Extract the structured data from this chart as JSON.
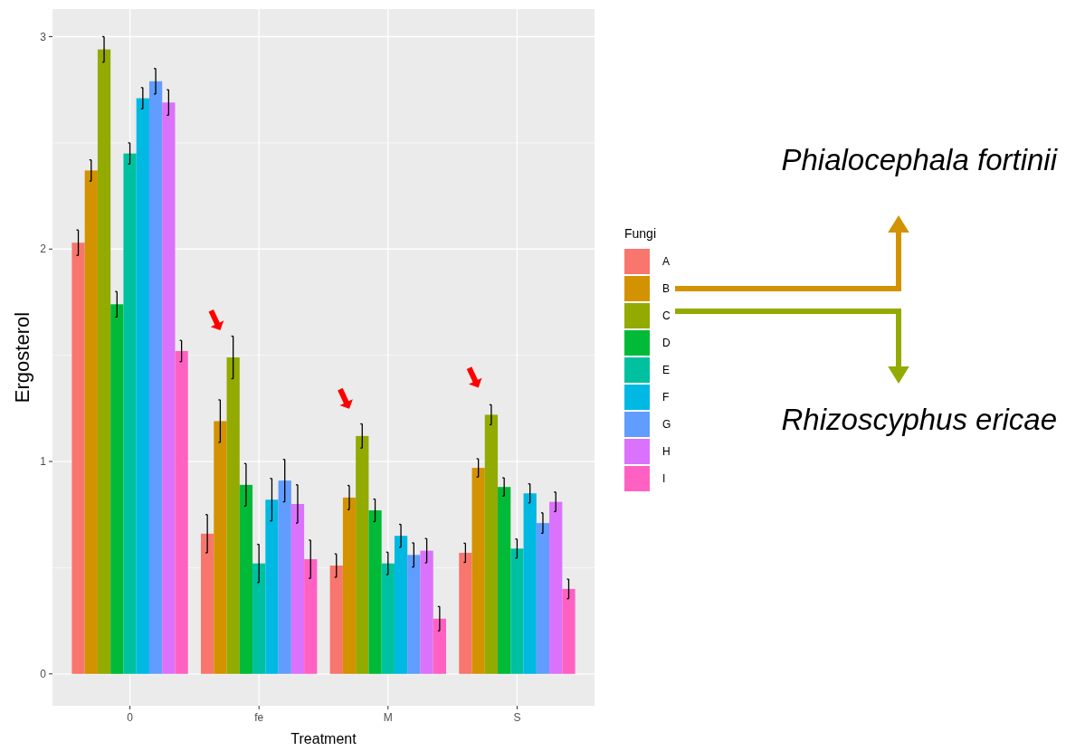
{
  "chart_data": {
    "type": "bar",
    "xlabel": "Treatment",
    "ylabel": "Ergosterol",
    "legend_title": "Fungi",
    "legend": "right",
    "grid": true,
    "categories": [
      "0",
      "fe",
      "M",
      "S"
    ],
    "ylim": [
      -0.15,
      3.13
    ],
    "yticks": [
      0,
      1,
      2,
      3
    ],
    "series": [
      {
        "name": "A",
        "color": "#f8766d",
        "values": [
          2.03,
          0.66,
          0.51,
          0.57
        ],
        "errors": [
          0.06,
          0.09,
          0.055,
          0.045
        ]
      },
      {
        "name": "B",
        "color": "#d39200",
        "values": [
          2.37,
          1.19,
          0.83,
          0.97
        ],
        "errors": [
          0.05,
          0.1,
          0.057,
          0.043
        ]
      },
      {
        "name": "C",
        "color": "#93aa00",
        "values": [
          2.94,
          1.49,
          1.12,
          1.22
        ],
        "errors": [
          0.06,
          0.1,
          0.057,
          0.047
        ]
      },
      {
        "name": "D",
        "color": "#00ba38",
        "values": [
          1.74,
          0.89,
          0.77,
          0.88
        ],
        "errors": [
          0.06,
          0.1,
          0.053,
          0.043
        ]
      },
      {
        "name": "E",
        "color": "#00c19f",
        "values": [
          2.45,
          0.52,
          0.52,
          0.59
        ],
        "errors": [
          0.05,
          0.09,
          0.053,
          0.045
        ]
      },
      {
        "name": "F",
        "color": "#00b9e3",
        "values": [
          2.71,
          0.82,
          0.65,
          0.85
        ],
        "errors": [
          0.05,
          0.1,
          0.054,
          0.045
        ]
      },
      {
        "name": "G",
        "color": "#619cff",
        "values": [
          2.79,
          0.91,
          0.56,
          0.71
        ],
        "errors": [
          0.06,
          0.1,
          0.057,
          0.048
        ]
      },
      {
        "name": "H",
        "color": "#db72fb",
        "values": [
          2.69,
          0.8,
          0.58,
          0.81
        ],
        "errors": [
          0.06,
          0.09,
          0.057,
          0.046
        ]
      },
      {
        "name": "I",
        "color": "#ff61c3",
        "values": [
          1.52,
          0.54,
          0.26,
          0.4
        ],
        "errors": [
          0.05,
          0.09,
          0.057,
          0.046
        ]
      }
    ],
    "annotations": [
      "Phialocephala fortinii",
      "Rhizoscyphus ericae"
    ]
  }
}
